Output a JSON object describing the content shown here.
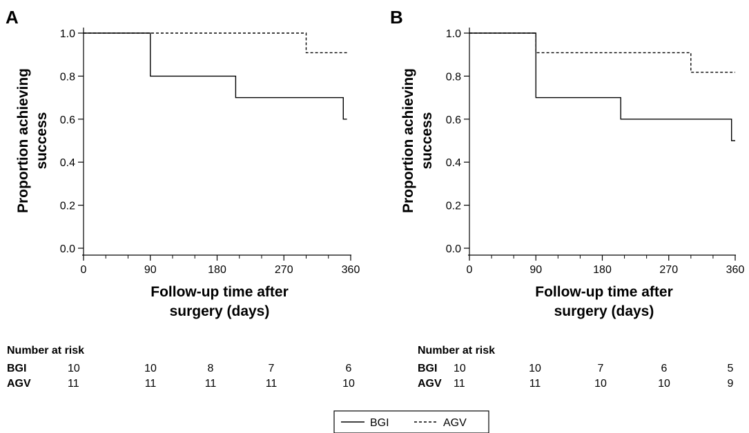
{
  "chart_data": [
    {
      "type": "line",
      "subtype": "kaplan-meier-step",
      "panel_label": "A",
      "xlabel": [
        "Follow-up time after",
        "surgery (days)"
      ],
      "ylabel": [
        "Proportion achieving",
        "success"
      ],
      "xlim": [
        0,
        360
      ],
      "ylim": [
        0,
        1
      ],
      "x_ticks": [
        0,
        90,
        180,
        270,
        360
      ],
      "x_minor_ticks": [
        30,
        60,
        120,
        150,
        210,
        240,
        300,
        330
      ],
      "y_ticks": [
        0.0,
        0.2,
        0.4,
        0.6,
        0.8,
        1.0
      ],
      "y_tick_labels": [
        "0.0",
        "0.2",
        "0.4",
        "0.6",
        "0.8",
        "1.0"
      ],
      "series": [
        {
          "name": "BGI",
          "style": "solid",
          "x": [
            0,
            90,
            90,
            205,
            205,
            350,
            350,
            355
          ],
          "y": [
            1.0,
            1.0,
            0.8,
            0.8,
            0.7,
            0.7,
            0.6,
            0.6
          ]
        },
        {
          "name": "AGV",
          "style": "dashed",
          "x": [
            0,
            300,
            300,
            355
          ],
          "y": [
            1.0,
            1.0,
            0.909,
            0.909
          ]
        }
      ],
      "risk_table": {
        "title": "Number at risk",
        "times": [
          0,
          90,
          180,
          270,
          360
        ],
        "rows": [
          {
            "name": "BGI",
            "values": [
              "10",
              "10",
              "8",
              "7",
              "6"
            ]
          },
          {
            "name": "AGV",
            "values": [
              "11",
              "11",
              "11",
              "11",
              "10"
            ]
          }
        ]
      }
    },
    {
      "type": "line",
      "subtype": "kaplan-meier-step",
      "panel_label": "B",
      "xlabel": [
        "Follow-up time after",
        "surgery (days)"
      ],
      "ylabel": [
        "Proportion achieving",
        "success"
      ],
      "xlim": [
        0,
        360
      ],
      "ylim": [
        0,
        1
      ],
      "x_ticks": [
        0,
        90,
        180,
        270,
        360
      ],
      "x_minor_ticks": [
        30,
        60,
        120,
        150,
        210,
        240,
        300,
        330
      ],
      "y_ticks": [
        0.0,
        0.2,
        0.4,
        0.6,
        0.8,
        1.0
      ],
      "y_tick_labels": [
        "0.0",
        "0.2",
        "0.4",
        "0.6",
        "0.8",
        "1.0"
      ],
      "series": [
        {
          "name": "BGI",
          "style": "solid",
          "x": [
            0,
            90,
            90,
            205,
            205,
            355,
            355,
            360
          ],
          "y": [
            1.0,
            1.0,
            0.7,
            0.7,
            0.6,
            0.6,
            0.5,
            0.5
          ]
        },
        {
          "name": "AGV",
          "style": "dashed",
          "x": [
            0,
            90,
            90,
            300,
            300,
            360
          ],
          "y": [
            1.0,
            1.0,
            0.909,
            0.909,
            0.818,
            0.818
          ]
        }
      ],
      "risk_table": {
        "title": "Number at risk",
        "times": [
          0,
          90,
          180,
          270,
          360
        ],
        "rows": [
          {
            "name": "BGI",
            "values": [
              "10",
              "10",
              "7",
              "6",
              "5"
            ]
          },
          {
            "name": "AGV",
            "values": [
              "11",
              "11",
              "10",
              "10",
              "9"
            ]
          }
        ]
      }
    }
  ],
  "legend": {
    "placement": "bottom-center",
    "entries": [
      {
        "name": "BGI",
        "style": "solid"
      },
      {
        "name": "AGV",
        "style": "dashed"
      }
    ]
  }
}
